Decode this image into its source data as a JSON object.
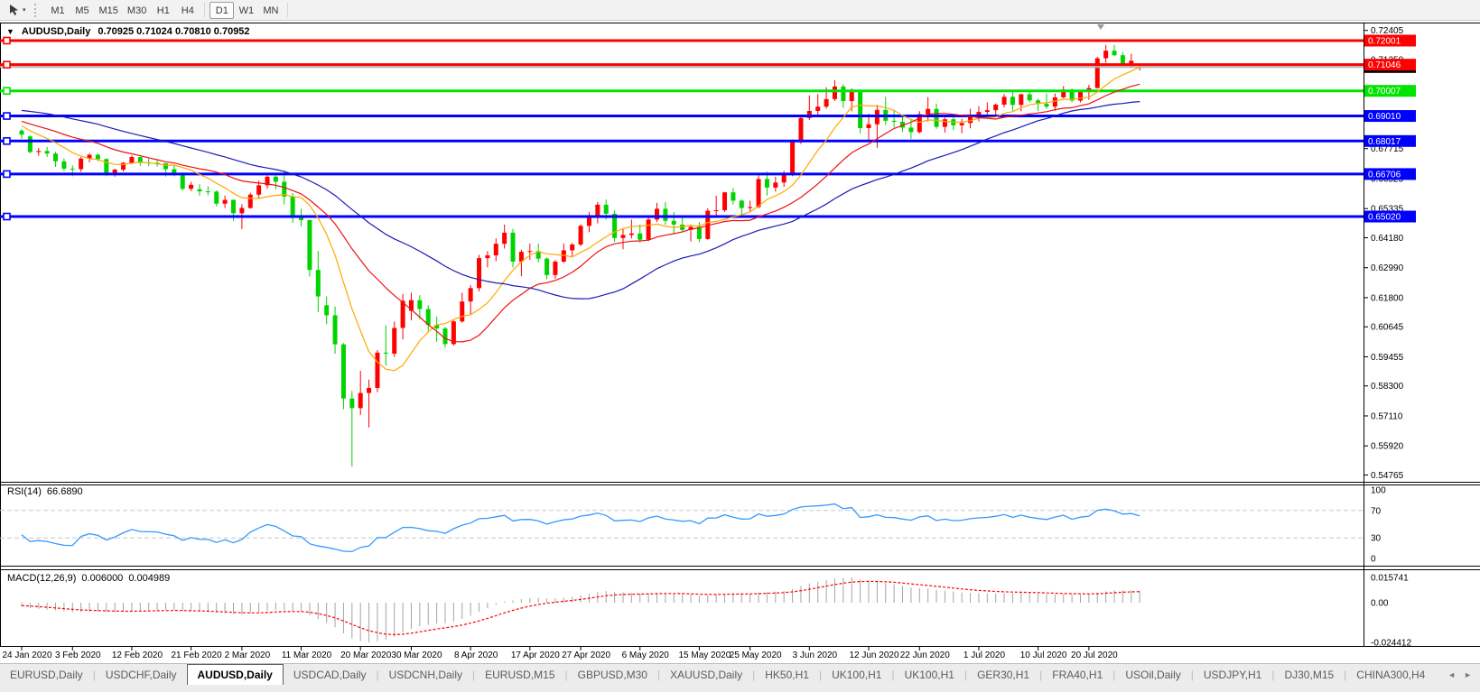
{
  "toolbar": {
    "timeframes": [
      "M1",
      "M5",
      "M15",
      "M30",
      "H1",
      "H4",
      "D1",
      "W1",
      "MN"
    ],
    "active": "D1"
  },
  "chart": {
    "menu_icon": "▼",
    "title_symbol": "AUDUSD,Daily",
    "title_ohlc": "0.70925 0.71024 0.70810 0.70952"
  },
  "rsi_panel": {
    "label": "RSI(14)",
    "value": "66.6890",
    "scale_labels": [
      "100",
      "70",
      "30",
      "0"
    ],
    "scale_values": [
      100,
      70,
      30,
      0
    ],
    "level_lines": [
      70,
      30
    ],
    "line_color": "#3399ff"
  },
  "macd_panel": {
    "label": "MACD(12,26,9)",
    "value_macd": "0.006000",
    "value_signal": "0.004989",
    "scale_max": "0.015741",
    "scale_zero": "0.00",
    "scale_min": "-0.024412",
    "bar_color": "#a4a4a4",
    "signal_color": "#ff0000"
  },
  "tabs": {
    "items": [
      "EURUSD,Daily",
      "USDCHF,Daily",
      "AUDUSD,Daily",
      "USDCAD,Daily",
      "USDCNH,Daily",
      "EURUSD,M15",
      "GBPUSD,M30",
      "XAUUSD,Daily",
      "HK50,H1",
      "UK100,H1",
      "UK100,H1",
      "GER30,H1",
      "FRA40,H1",
      "USOil,Daily",
      "USDJPY,H1",
      "DJ30,M15",
      "CHINA300,H4"
    ],
    "active_index": 2,
    "scroll_left_icon": "◄",
    "scroll_right_icon": "►"
  },
  "chart_data": {
    "type": "candlestick",
    "symbol": "AUDUSD",
    "timeframe": "Daily",
    "up_color": "#ff0000",
    "down_color": "#00d400",
    "current_price": 0.70952,
    "current_price_line_color": "#b4b4b4",
    "price_axis_ticks": [
      0.72405,
      0.7125,
      0.7006,
      0.68905,
      0.67715,
      0.66525,
      0.65335,
      0.6418,
      0.6299,
      0.618,
      0.60645,
      0.59455,
      0.583,
      0.5711,
      0.5592,
      0.54765
    ],
    "horizontal_levels": [
      {
        "price": 0.72001,
        "color": "#ff0000"
      },
      {
        "price": 0.71046,
        "color": "#ff0000"
      },
      {
        "price": 0.70007,
        "color": "#00e400"
      },
      {
        "price": 0.6901,
        "color": "#0000ff"
      },
      {
        "price": 0.68017,
        "color": "#0000ff"
      },
      {
        "price": 0.66706,
        "color": "#0000ff"
      },
      {
        "price": 0.6502,
        "color": "#0000ff"
      }
    ],
    "moving_averages": [
      {
        "period": 8,
        "color": "#ffa800"
      },
      {
        "period": 17,
        "color": "#f01010"
      },
      {
        "period": 34,
        "color": "#1a1ab4"
      }
    ],
    "date_labels": [
      {
        "text": "24 Jan 2020",
        "bar": 0
      },
      {
        "text": "3 Feb 2020",
        "bar": 6
      },
      {
        "text": "12 Feb 2020",
        "bar": 13
      },
      {
        "text": "21 Feb 2020",
        "bar": 20
      },
      {
        "text": "2 Mar 2020",
        "bar": 26
      },
      {
        "text": "11 Mar 2020",
        "bar": 33
      },
      {
        "text": "20 Mar 2020",
        "bar": 40
      },
      {
        "text": "30 Mar 2020",
        "bar": 46
      },
      {
        "text": "8 Apr 2020",
        "bar": 53
      },
      {
        "text": "17 Apr 2020",
        "bar": 60
      },
      {
        "text": "27 Apr 2020",
        "bar": 66
      },
      {
        "text": "6 May 2020",
        "bar": 73
      },
      {
        "text": "15 May 2020",
        "bar": 80
      },
      {
        "text": "25 May 2020",
        "bar": 86
      },
      {
        "text": "3 Jun 2020",
        "bar": 93
      },
      {
        "text": "12 Jun 2020",
        "bar": 100
      },
      {
        "text": "22 Jun 2020",
        "bar": 106
      },
      {
        "text": "1 Jul 2020",
        "bar": 113
      },
      {
        "text": "10 Jul 2020",
        "bar": 120
      },
      {
        "text": "20 Jul 2020",
        "bar": 126
      }
    ],
    "prehistory_closes": [
      0.688,
      0.6892,
      0.6905,
      0.6915,
      0.6925,
      0.694,
      0.695,
      0.6962,
      0.6975,
      0.6988,
      0.7,
      0.7012,
      0.7023,
      0.7015,
      0.7,
      0.6988,
      0.6975,
      0.696,
      0.6942,
      0.6928,
      0.6912,
      0.69,
      0.6888,
      0.6878,
      0.687,
      0.6862,
      0.6885,
      0.6912,
      0.689,
      0.6868,
      0.6855,
      0.6848,
      0.6852,
      0.6843
    ],
    "candles": [
      [
        0.6843,
        0.6849,
        0.681,
        0.6827
      ],
      [
        0.682,
        0.6824,
        0.6753,
        0.6758
      ],
      [
        0.6758,
        0.6774,
        0.6743,
        0.6762
      ],
      [
        0.6762,
        0.6778,
        0.6739,
        0.6752
      ],
      [
        0.6752,
        0.6759,
        0.6699,
        0.6721
      ],
      [
        0.6721,
        0.6733,
        0.6682,
        0.6692
      ],
      [
        0.6692,
        0.6705,
        0.6662,
        0.669
      ],
      [
        0.669,
        0.6738,
        0.6679,
        0.6732
      ],
      [
        0.6732,
        0.6754,
        0.6717,
        0.6747
      ],
      [
        0.6747,
        0.6753,
        0.6722,
        0.673
      ],
      [
        0.673,
        0.6733,
        0.6662,
        0.6671
      ],
      [
        0.6671,
        0.6692,
        0.666,
        0.6688
      ],
      [
        0.6688,
        0.6719,
        0.668,
        0.6715
      ],
      [
        0.6715,
        0.6744,
        0.6711,
        0.6738
      ],
      [
        0.6738,
        0.6741,
        0.6703,
        0.6717
      ],
      [
        0.6717,
        0.6732,
        0.6702,
        0.6715
      ],
      [
        0.6715,
        0.6726,
        0.67,
        0.6713
      ],
      [
        0.6713,
        0.6714,
        0.6661,
        0.669
      ],
      [
        0.669,
        0.6705,
        0.6662,
        0.6674
      ],
      [
        0.6674,
        0.6677,
        0.6605,
        0.6612
      ],
      [
        0.6612,
        0.664,
        0.6603,
        0.6628
      ],
      [
        0.661,
        0.663,
        0.6585,
        0.6602
      ],
      [
        0.6602,
        0.6622,
        0.6586,
        0.6601
      ],
      [
        0.6601,
        0.6606,
        0.6542,
        0.6553
      ],
      [
        0.6553,
        0.6585,
        0.6536,
        0.6568
      ],
      [
        0.6568,
        0.657,
        0.6485,
        0.6515
      ],
      [
        0.6515,
        0.6551,
        0.6452,
        0.6536
      ],
      [
        0.6536,
        0.6596,
        0.6533,
        0.6589
      ],
      [
        0.6589,
        0.6645,
        0.6576,
        0.6626
      ],
      [
        0.6626,
        0.6665,
        0.6612,
        0.666
      ],
      [
        0.666,
        0.6668,
        0.661,
        0.664
      ],
      [
        0.664,
        0.6685,
        0.655,
        0.6581
      ],
      [
        0.6581,
        0.6595,
        0.6477,
        0.65
      ],
      [
        0.65,
        0.6533,
        0.6463,
        0.6488
      ],
      [
        0.6488,
        0.649,
        0.6264,
        0.629
      ],
      [
        0.629,
        0.6365,
        0.6123,
        0.6185
      ],
      [
        0.615,
        0.6185,
        0.6075,
        0.611
      ],
      [
        0.611,
        0.6145,
        0.5958,
        0.5995
      ],
      [
        0.5995,
        0.6,
        0.5737,
        0.578
      ],
      [
        0.578,
        0.581,
        0.551,
        0.5742
      ],
      [
        0.5742,
        0.589,
        0.5715,
        0.5802
      ],
      [
        0.5802,
        0.5855,
        0.5665,
        0.5822
      ],
      [
        0.5822,
        0.5972,
        0.5805,
        0.5962
      ],
      [
        0.5962,
        0.607,
        0.591,
        0.5958
      ],
      [
        0.5958,
        0.6085,
        0.5945,
        0.606
      ],
      [
        0.606,
        0.6195,
        0.6015,
        0.6168
      ],
      [
        0.6128,
        0.62,
        0.609,
        0.617
      ],
      [
        0.617,
        0.619,
        0.6095,
        0.6135
      ],
      [
        0.6135,
        0.615,
        0.6048,
        0.6072
      ],
      [
        0.6072,
        0.6105,
        0.6005,
        0.6058
      ],
      [
        0.6058,
        0.6065,
        0.5982,
        0.5996
      ],
      [
        0.5996,
        0.609,
        0.599,
        0.6086
      ],
      [
        0.6086,
        0.62,
        0.608,
        0.6165
      ],
      [
        0.6165,
        0.623,
        0.611,
        0.6218
      ],
      [
        0.6218,
        0.635,
        0.6205,
        0.6337
      ],
      [
        0.6337,
        0.6365,
        0.63,
        0.6348
      ],
      [
        0.6348,
        0.6415,
        0.6325,
        0.6394
      ],
      [
        0.6394,
        0.647,
        0.6375,
        0.6438
      ],
      [
        0.6438,
        0.6453,
        0.63,
        0.6323
      ],
      [
        0.6323,
        0.637,
        0.6265,
        0.6362
      ],
      [
        0.6362,
        0.6395,
        0.633,
        0.6365
      ],
      [
        0.6365,
        0.6395,
        0.632,
        0.6335
      ],
      [
        0.6335,
        0.634,
        0.6253,
        0.627
      ],
      [
        0.627,
        0.633,
        0.6255,
        0.6323
      ],
      [
        0.6323,
        0.6395,
        0.6318,
        0.6368
      ],
      [
        0.6368,
        0.6398,
        0.634,
        0.6391
      ],
      [
        0.6391,
        0.6471,
        0.6385,
        0.6465
      ],
      [
        0.6465,
        0.652,
        0.644,
        0.6497
      ],
      [
        0.6497,
        0.656,
        0.6475,
        0.6549
      ],
      [
        0.6549,
        0.657,
        0.649,
        0.6513
      ],
      [
        0.6513,
        0.6525,
        0.6402,
        0.6417
      ],
      [
        0.6417,
        0.6455,
        0.6372,
        0.6429
      ],
      [
        0.6429,
        0.649,
        0.6415,
        0.6435
      ],
      [
        0.6435,
        0.647,
        0.6398,
        0.641
      ],
      [
        0.641,
        0.65,
        0.6405,
        0.649
      ],
      [
        0.649,
        0.6556,
        0.648,
        0.6533
      ],
      [
        0.6533,
        0.656,
        0.647,
        0.6485
      ],
      [
        0.6485,
        0.652,
        0.6432,
        0.647
      ],
      [
        0.647,
        0.6505,
        0.644,
        0.6449
      ],
      [
        0.6449,
        0.647,
        0.6403,
        0.6461
      ],
      [
        0.6461,
        0.648,
        0.64,
        0.6413
      ],
      [
        0.6413,
        0.6535,
        0.641,
        0.6525
      ],
      [
        0.6525,
        0.6585,
        0.6505,
        0.6527
      ],
      [
        0.6527,
        0.66,
        0.652,
        0.6598
      ],
      [
        0.6598,
        0.6616,
        0.655,
        0.6565
      ],
      [
        0.6565,
        0.657,
        0.651,
        0.6536
      ],
      [
        0.6536,
        0.6565,
        0.652,
        0.654
      ],
      [
        0.654,
        0.6665,
        0.6535,
        0.6651
      ],
      [
        0.6651,
        0.668,
        0.6585,
        0.6617
      ],
      [
        0.6617,
        0.666,
        0.6601,
        0.6637
      ],
      [
        0.6637,
        0.6683,
        0.662,
        0.6667
      ],
      [
        0.6667,
        0.6808,
        0.6662,
        0.6797
      ],
      [
        0.6797,
        0.6902,
        0.679,
        0.6893
      ],
      [
        0.6893,
        0.6983,
        0.6885,
        0.6921
      ],
      [
        0.6921,
        0.6988,
        0.6903,
        0.6938
      ],
      [
        0.6938,
        0.7015,
        0.693,
        0.6968
      ],
      [
        0.6968,
        0.7043,
        0.696,
        0.7018
      ],
      [
        0.7018,
        0.7027,
        0.6933,
        0.696
      ],
      [
        0.696,
        0.701,
        0.692,
        0.7
      ],
      [
        0.7,
        0.7005,
        0.6832,
        0.6853
      ],
      [
        0.6853,
        0.691,
        0.68,
        0.6868
      ],
      [
        0.6868,
        0.6945,
        0.6775,
        0.6925
      ],
      [
        0.6925,
        0.6977,
        0.6865,
        0.6882
      ],
      [
        0.6882,
        0.6925,
        0.6855,
        0.6878
      ],
      [
        0.6878,
        0.6905,
        0.6837,
        0.6855
      ],
      [
        0.6855,
        0.689,
        0.681,
        0.6837
      ],
      [
        0.6837,
        0.692,
        0.6832,
        0.6908
      ],
      [
        0.6908,
        0.6976,
        0.688,
        0.6929
      ],
      [
        0.6929,
        0.695,
        0.685,
        0.6858
      ],
      [
        0.6858,
        0.6895,
        0.6835,
        0.6888
      ],
      [
        0.6888,
        0.6899,
        0.6845,
        0.6864
      ],
      [
        0.6864,
        0.689,
        0.6832,
        0.6873
      ],
      [
        0.6873,
        0.693,
        0.6852,
        0.6902
      ],
      [
        0.6902,
        0.694,
        0.688,
        0.6917
      ],
      [
        0.6917,
        0.6955,
        0.69,
        0.6924
      ],
      [
        0.6924,
        0.695,
        0.6905,
        0.6946
      ],
      [
        0.6946,
        0.6988,
        0.6935,
        0.6977
      ],
      [
        0.6977,
        0.6998,
        0.6922,
        0.6945
      ],
      [
        0.6945,
        0.699,
        0.692,
        0.6987
      ],
      [
        0.6987,
        0.7001,
        0.6955,
        0.6963
      ],
      [
        0.6963,
        0.697,
        0.692,
        0.6949
      ],
      [
        0.6949,
        0.699,
        0.693,
        0.6938
      ],
      [
        0.6938,
        0.699,
        0.6922,
        0.6975
      ],
      [
        0.6975,
        0.702,
        0.6972,
        0.7006
      ],
      [
        0.7006,
        0.701,
        0.6955,
        0.6962
      ],
      [
        0.6962,
        0.7005,
        0.6955,
        0.6996
      ],
      [
        0.6996,
        0.7025,
        0.6965,
        0.7012
      ],
      [
        0.7012,
        0.7136,
        0.701,
        0.713
      ],
      [
        0.713,
        0.7183,
        0.7112,
        0.716
      ],
      [
        0.716,
        0.7183,
        0.7138,
        0.7142
      ],
      [
        0.7142,
        0.7155,
        0.7098,
        0.7108
      ],
      [
        0.7108,
        0.7148,
        0.7092,
        0.712
      ],
      [
        0.70925,
        0.71024,
        0.7081,
        0.70952
      ]
    ]
  }
}
